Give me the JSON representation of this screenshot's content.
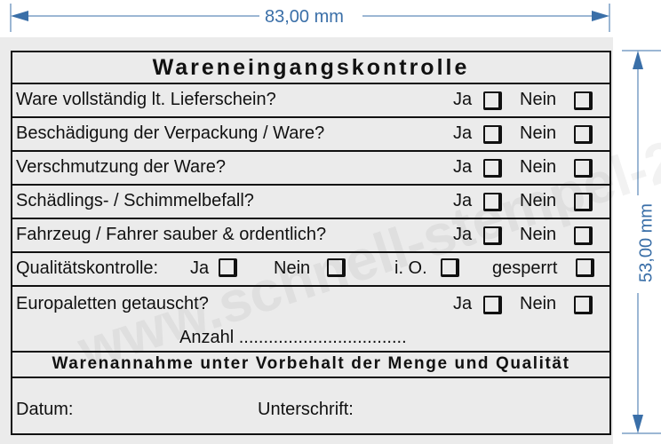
{
  "dimensions": {
    "width_label": "83,00 mm",
    "height_label": "53,00 mm",
    "color": "#3a6fa8"
  },
  "watermark": "www.schnell-stempel-24.de",
  "stamp": {
    "title": "Wareneingangskontrolle",
    "rows": [
      {
        "question": "Ware vollständig lt. Lieferschein?",
        "yes": "Ja",
        "no": "Nein"
      },
      {
        "question": "Beschädigung der Verpackung / Ware?",
        "yes": "Ja",
        "no": "Nein"
      },
      {
        "question": "Verschmutzung der Ware?",
        "yes": "Ja",
        "no": "Nein"
      },
      {
        "question": "Schädlings- / Schimmelbefall?",
        "yes": "Ja",
        "no": "Nein"
      },
      {
        "question": "Fahrzeug / Fahrer sauber & ordentlich?",
        "yes": "Ja",
        "no": "Nein"
      }
    ],
    "quality": {
      "label": "Qualitätskontrolle:",
      "yes": "Ja",
      "no": "Nein",
      "ok": "i. O.",
      "blocked": "gesperrt"
    },
    "pallets": {
      "question": "Europaletten getauscht?",
      "yes": "Ja",
      "no": "Nein",
      "count_label": "Anzahl .................................."
    },
    "footer_title": "Warenannahme unter Vorbehalt der Menge und Qualität",
    "date_label": "Datum:",
    "signature_label": "Unterschrift:"
  }
}
